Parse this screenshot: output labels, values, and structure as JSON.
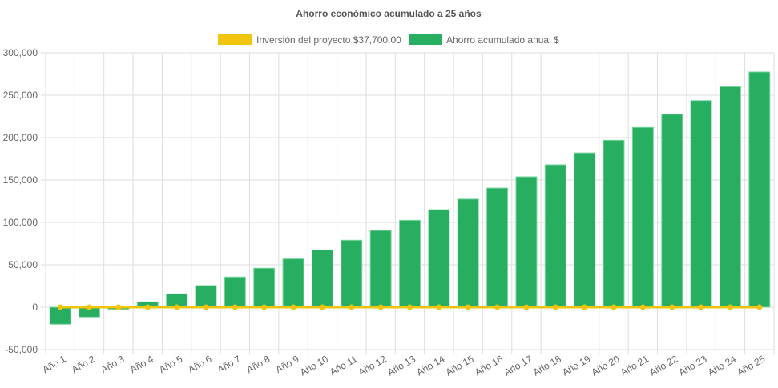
{
  "chart_data": {
    "type": "bar",
    "title": "Ahorro económico acumulado a 25 años",
    "legend_position": "top",
    "grid": true,
    "categories": [
      "Año 1",
      "Año 2",
      "Año 3",
      "Año 4",
      "Año 5",
      "Año 6",
      "Año 7",
      "Año 8",
      "Año 9",
      "Año 10",
      "Año 11",
      "Año 12",
      "Año 13",
      "Año 14",
      "Año 15",
      "Año 16",
      "Año 17",
      "Año 18",
      "Año 19",
      "Año 20",
      "Año 21",
      "Año 22",
      "Año 23",
      "Año 24",
      "Año 25"
    ],
    "ylim": [
      -50000,
      300000
    ],
    "yticks": [
      "-50,000",
      "0",
      "50,000",
      "100,000",
      "150,000",
      "200,000",
      "250,000",
      "300,000"
    ],
    "series": [
      {
        "name": "Inversión del proyecto $37,700.00",
        "type": "line",
        "color": "#f1c40f",
        "values": [
          0,
          0,
          0,
          0,
          0,
          0,
          0,
          0,
          0,
          0,
          0,
          0,
          0,
          0,
          0,
          0,
          0,
          0,
          0,
          0,
          0,
          0,
          0,
          0,
          0
        ]
      },
      {
        "name": "Ahorro acumulado anual $",
        "type": "bar",
        "color": "#27ae60",
        "values": [
          -20100,
          -11600,
          -2500,
          6300,
          15700,
          25500,
          35600,
          46000,
          57000,
          67500,
          79000,
          90500,
          102500,
          115000,
          127500,
          140500,
          153800,
          168000,
          182000,
          196900,
          212000,
          227600,
          243700,
          260000,
          277400
        ]
      }
    ]
  }
}
